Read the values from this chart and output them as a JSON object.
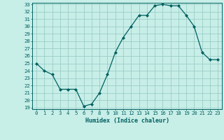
{
  "x": [
    0,
    1,
    2,
    3,
    4,
    5,
    6,
    7,
    8,
    9,
    10,
    11,
    12,
    13,
    14,
    15,
    16,
    17,
    18,
    19,
    20,
    21,
    22,
    23
  ],
  "y": [
    25.0,
    24.0,
    23.5,
    21.5,
    21.5,
    21.5,
    19.2,
    19.5,
    21.0,
    23.5,
    26.5,
    28.5,
    30.0,
    31.5,
    31.5,
    32.8,
    33.0,
    32.8,
    32.8,
    31.5,
    30.0,
    26.5,
    25.5,
    25.5
  ],
  "xlabel": "Humidex (Indice chaleur)",
  "ylim": [
    19,
    33
  ],
  "xlim": [
    -0.5,
    23.5
  ],
  "yticks": [
    19,
    20,
    21,
    22,
    23,
    24,
    25,
    26,
    27,
    28,
    29,
    30,
    31,
    32,
    33
  ],
  "xticks": [
    0,
    1,
    2,
    3,
    4,
    5,
    6,
    7,
    8,
    9,
    10,
    11,
    12,
    13,
    14,
    15,
    16,
    17,
    18,
    19,
    20,
    21,
    22,
    23
  ],
  "line_color": "#006060",
  "marker_color": "#006060",
  "bg_color": "#c8eee8",
  "grid_color": "#90c8c0",
  "title": ""
}
